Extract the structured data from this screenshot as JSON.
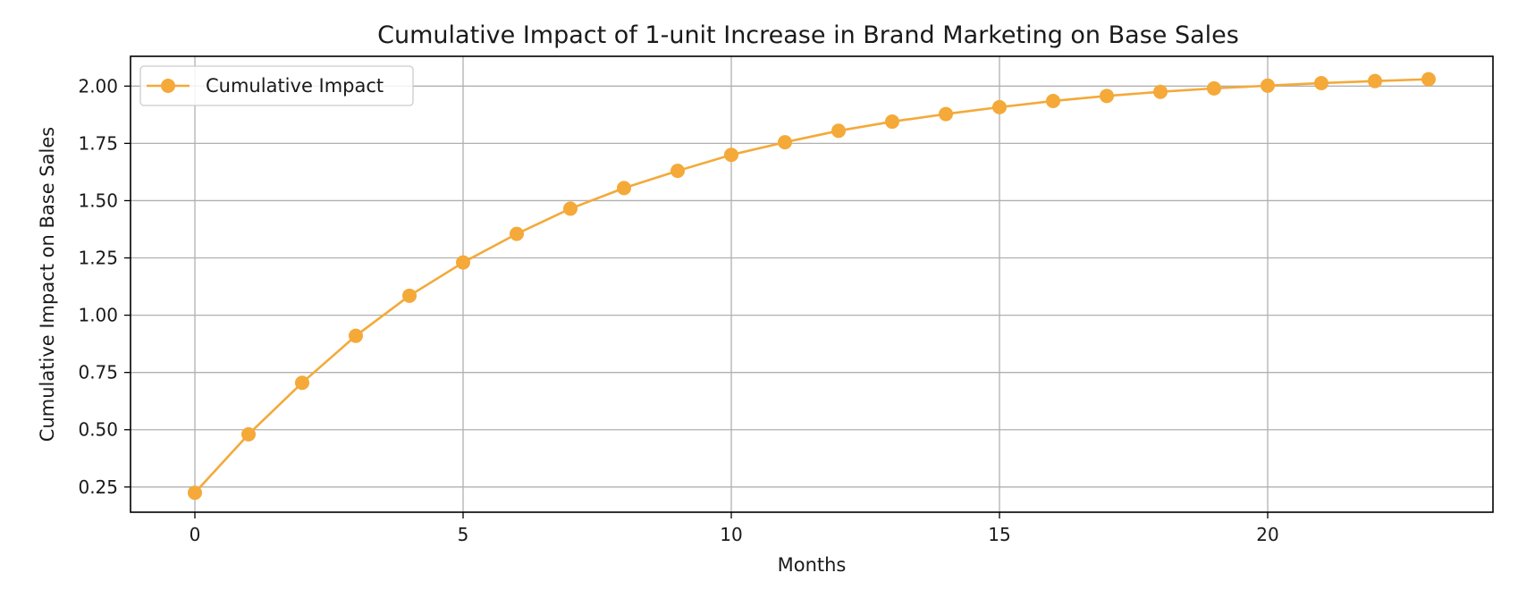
{
  "chart_data": {
    "type": "line",
    "title": "Cumulative Impact of 1-unit Increase in Brand Marketing on Base Sales",
    "xlabel": "Months",
    "ylabel": "Cumulative Impact on Base Sales",
    "xlim": [
      -1.2,
      24.2
    ],
    "ylim": [
      0.14,
      2.13
    ],
    "xticks": [
      0,
      5,
      10,
      15,
      20
    ],
    "xtick_labels": [
      "0",
      "5",
      "10",
      "15",
      "20"
    ],
    "yticks": [
      0.25,
      0.5,
      0.75,
      1.0,
      1.25,
      1.5,
      1.75,
      2.0
    ],
    "ytick_labels": [
      "0.25",
      "0.50",
      "0.75",
      "1.00",
      "1.25",
      "1.50",
      "1.75",
      "2.00"
    ],
    "grid": true,
    "legend_position": "upper-left",
    "series": [
      {
        "name": "Cumulative Impact",
        "color": "#F4A939",
        "marker": "circle",
        "x": [
          0,
          1,
          2,
          3,
          4,
          5,
          6,
          7,
          8,
          9,
          10,
          11,
          12,
          13,
          14,
          15,
          16,
          17,
          18,
          19,
          20,
          21,
          22,
          23
        ],
        "y": [
          0.225,
          0.48,
          0.705,
          0.91,
          1.085,
          1.23,
          1.355,
          1.465,
          1.555,
          1.63,
          1.7,
          1.755,
          1.805,
          1.845,
          1.878,
          1.908,
          1.935,
          1.957,
          1.975,
          1.99,
          2.002,
          2.013,
          2.022,
          2.03
        ]
      }
    ]
  }
}
